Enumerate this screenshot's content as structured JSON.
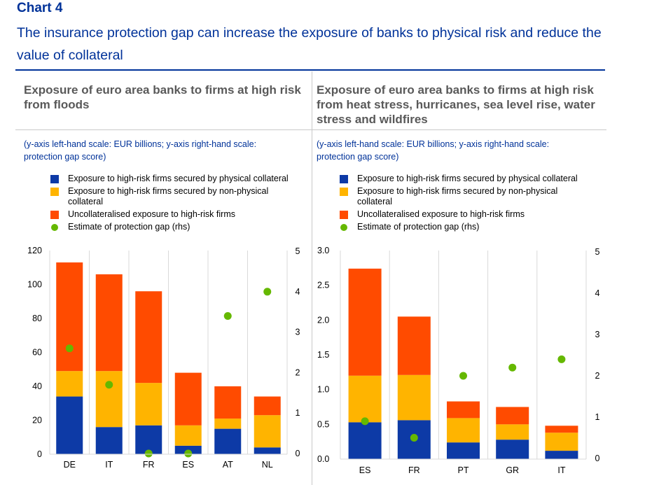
{
  "header": {
    "chart_label": "Chart 4",
    "title": "The insurance protection gap can increase the exposure of banks to physical risk and reduce the value of collateral"
  },
  "colors": {
    "physical": "#0D3AA6",
    "non_physical": "#FFB400",
    "uncollateralised": "#FF4B00",
    "gap": "#65B800",
    "title": "#003299",
    "panel_title": "#595959"
  },
  "chart_data": [
    {
      "type": "bar",
      "stacked": true,
      "title": "Exposure of euro area banks to firms at high risk from floods",
      "subtitle": "(y-axis left-hand scale: EUR billions; y-axis right-hand scale: protection gap score)",
      "categories": [
        "DE",
        "IT",
        "FR",
        "ES",
        "AT",
        "NL"
      ],
      "ylim": [
        0,
        120
      ],
      "yticks": [
        "0",
        "20",
        "40",
        "60",
        "80",
        "100",
        "120"
      ],
      "y2lim": [
        0,
        5
      ],
      "y2ticks": [
        "0",
        "1",
        "2",
        "3",
        "4",
        "5"
      ],
      "grid": true,
      "legend_position": "top",
      "series": [
        {
          "name": "Exposure to high-risk firms secured by physical collateral",
          "kind": "bar",
          "values": [
            34,
            16,
            17,
            5,
            15,
            4
          ]
        },
        {
          "name": "Exposure to high-risk firms secured by non-physical collateral",
          "kind": "bar",
          "values": [
            15,
            33,
            25,
            12,
            6,
            19
          ]
        },
        {
          "name": "Uncollateralised exposure to high-risk firms",
          "kind": "bar",
          "values": [
            64,
            57,
            54,
            31,
            19,
            11
          ]
        },
        {
          "name": "Estimate of protection gap (rhs)",
          "kind": "dot",
          "axis": "right",
          "values": [
            2.6,
            1.7,
            0.0,
            0.0,
            3.4,
            4.0
          ]
        }
      ]
    },
    {
      "type": "bar",
      "stacked": true,
      "title": "Exposure of euro area banks to firms at high risk from heat stress, hurricanes, sea level rise, water stress and wildfires",
      "subtitle": "(y-axis left-hand scale: EUR billions; y-axis right-hand scale: protection gap score)",
      "categories": [
        "ES",
        "FR",
        "PT",
        "GR",
        "IT"
      ],
      "ylim": [
        0,
        3
      ],
      "yticks": [
        "0.0",
        "0.5",
        "1.0",
        "1.5",
        "2.0",
        "2.5",
        "3.0"
      ],
      "y2lim": [
        0,
        5
      ],
      "y2ticks": [
        "0",
        "1",
        "2",
        "3",
        "4",
        "5"
      ],
      "grid": true,
      "legend_position": "top",
      "series": [
        {
          "name": "Exposure to high-risk firms secured by physical collateral",
          "kind": "bar",
          "values": [
            0.53,
            0.56,
            0.24,
            0.28,
            0.12
          ]
        },
        {
          "name": "Exposure to high-risk firms secured by non-physical collateral",
          "kind": "bar",
          "values": [
            0.67,
            0.65,
            0.35,
            0.22,
            0.26
          ]
        },
        {
          "name": "Uncollateralised exposure to high-risk firms",
          "kind": "bar",
          "values": [
            1.54,
            0.84,
            0.24,
            0.25,
            0.1
          ]
        },
        {
          "name": "Estimate of protection gap (rhs)",
          "kind": "dot",
          "axis": "right",
          "values": [
            0.9,
            0.5,
            2.0,
            2.2,
            2.4
          ]
        }
      ]
    }
  ]
}
